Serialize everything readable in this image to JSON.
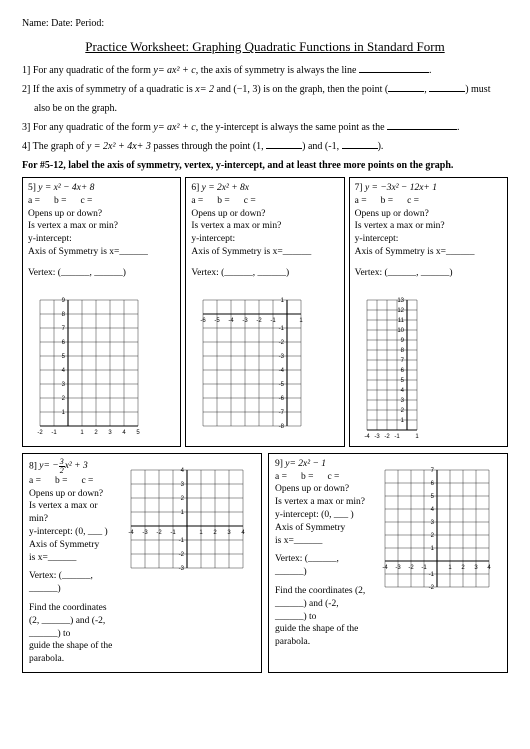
{
  "header": {
    "name": "Name:",
    "date": "Date:",
    "period": "Period:"
  },
  "title": "Practice Worksheet: Graphing Quadratic Functions in Standard Form",
  "q1": {
    "n": "1]",
    "t1": "For any quadratic of the form ",
    "eq": "y= ax² + c",
    "t2": ", the axis of symmetry is always the line ",
    "end": "."
  },
  "q2": {
    "n": "2]",
    "t1": "If the axis of symmetry of a quadratic is ",
    "eq": "x= 2",
    "t2": " and (−1, 3) is on the graph, then the point (",
    "t3": ", ",
    "t4": ") must",
    "sub": "also be on the graph."
  },
  "q3": {
    "n": "3]",
    "t1": "For any quadratic of the form ",
    "eq": "y= ax² + c",
    "t2": ", the y-intercept is always the same point as the ",
    "end": "."
  },
  "q4": {
    "n": "4]",
    "t1": "The graph of ",
    "eq": "y = 2x² + 4x+ 3",
    "t2": " passes through the point (1, ",
    "t3": ") and (-1, ",
    "t4": ")."
  },
  "instr": "For #5-12, label the axis of symmetry, vertex, y-intercept, and at least three more points on the graph.",
  "labels": {
    "a": "a =",
    "b": "b =",
    "c": "c =",
    "opens": "Opens up or down?",
    "maxmin": "Is vertex a max or min?",
    "yint": "y-intercept:",
    "yint0": "y-intercept: (0, ___ )",
    "aos": "Axis of Symmetry is x=______",
    "aos2": "Axis of Symmetry",
    "isx": "is x=______",
    "vertex": "Vertex: (______, ______)"
  },
  "p5": {
    "num": "5]",
    "eq": "y = x² − 4x+ 8"
  },
  "p6": {
    "num": "6]",
    "eq": "y = 2x² + 8x"
  },
  "p7": {
    "num": "7]",
    "eq": "y = −3x² − 12x+ 1"
  },
  "p8": {
    "num": "8]",
    "eq_pre": "y= −",
    "eq_post": "x² + 3",
    "find1": "Find the coordinates (2, ______) and (-2, ______) to",
    "find2": "guide the shape of the parabola."
  },
  "p9": {
    "num": "9]",
    "eq": "y= 2x² − 1",
    "find1": "Find the coordinates (2, ______) and (-2, ______) to",
    "find2": "guide the shape of the parabola."
  },
  "grids": {
    "g5": {
      "xmin": -2,
      "xmax": 5,
      "ymin": 0,
      "ymax": 9,
      "xstep": 1,
      "ystep": 1,
      "cell": 14,
      "yaxis_x": 0
    },
    "g6": {
      "xmin": -6,
      "xmax": 1,
      "ymin": -8,
      "ymax": 1,
      "xstep": 1,
      "ystep": 1,
      "cell": 14,
      "yaxis_x": 0
    },
    "g7": {
      "xmin": -4,
      "xmax": 1,
      "ymin": 0,
      "ymax": 13,
      "xstep": 1,
      "ystep": 1,
      "cell": 10,
      "yaxis_x": 0
    },
    "g8": {
      "xmin": -4,
      "xmax": 4,
      "ymin": -3,
      "ymax": 4,
      "xstep": 1,
      "ystep": 1,
      "cell": 14,
      "yaxis_x": 0
    },
    "g9": {
      "xmin": -4,
      "xmax": 4,
      "ymin": -2,
      "ymax": 7,
      "xstep": 1,
      "ystep": 1,
      "cell": 13,
      "yaxis_x": 0
    }
  },
  "style": {
    "grid_color": "#000000",
    "grid_stroke": 0.4,
    "axis_stroke": 1.1,
    "bg": "#ffffff"
  }
}
